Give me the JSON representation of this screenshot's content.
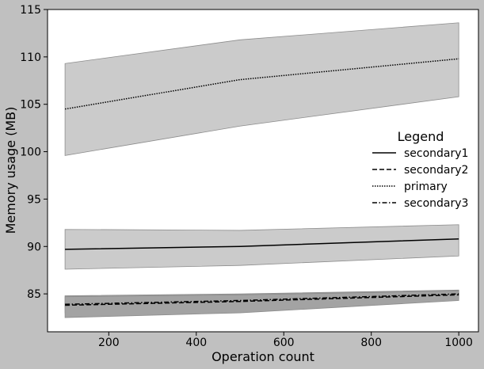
{
  "chart_data": {
    "type": "line",
    "title": "",
    "xlabel": "Operation count",
    "ylabel": "Memory usage (MB)",
    "xlim": [
      60,
      1045
    ],
    "ylim": [
      81,
      115
    ],
    "xticks": [
      200,
      400,
      600,
      800,
      1000
    ],
    "yticks": [
      85,
      90,
      95,
      100,
      105,
      110,
      115
    ],
    "grid": false,
    "legend": {
      "title": "Legend",
      "placement": "center-right"
    },
    "x": [
      100,
      500,
      1000
    ],
    "series": [
      {
        "name": "secondary1",
        "values": [
          89.7,
          90.0,
          90.8
        ],
        "lower": [
          87.6,
          88.0,
          89.0
        ],
        "upper": [
          91.8,
          91.7,
          92.3
        ],
        "dash": "solid",
        "band_color": "#cbcbcb"
      },
      {
        "name": "secondary2",
        "values": [
          83.8,
          84.2,
          84.9
        ],
        "lower": [
          83.0,
          83.4,
          84.5
        ],
        "upper": [
          84.8,
          85.0,
          85.4
        ],
        "dash": "dashed",
        "band_color": "#a3a3a3"
      },
      {
        "name": "primary",
        "values": [
          104.5,
          107.6,
          109.8
        ],
        "lower": [
          99.6,
          102.7,
          105.8
        ],
        "upper": [
          109.3,
          111.8,
          113.6
        ],
        "dash": "dotted",
        "band_color": "#cbcbcb"
      },
      {
        "name": "secondary3",
        "values": [
          83.9,
          84.3,
          85.0
        ],
        "lower": [
          82.5,
          83.0,
          84.3
        ],
        "upper": [
          84.7,
          84.9,
          85.3
        ],
        "dash": "dashdot",
        "band_color": "#a3a3a3"
      }
    ],
    "colors": {
      "figure_bg": "#c0c0c0",
      "plot_bg": "#ffffff",
      "line": "#000000",
      "band_edge": "#8c8c8c"
    }
  }
}
